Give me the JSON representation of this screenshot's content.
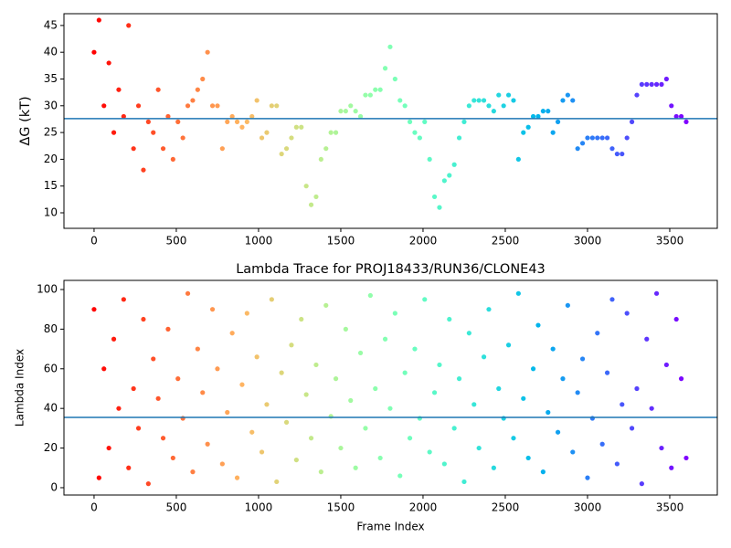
{
  "chart_data": [
    {
      "type": "scatter",
      "ylabel": "ΔG (kT)",
      "colormap": "rainbow_r",
      "x": [
        0,
        30,
        60,
        90,
        120,
        150,
        180,
        210,
        240,
        270,
        300,
        330,
        360,
        390,
        420,
        450,
        480,
        510,
        540,
        570,
        600,
        630,
        660,
        690,
        720,
        750,
        780,
        810,
        840,
        870,
        900,
        930,
        960,
        990,
        1020,
        1050,
        1080,
        1110,
        1140,
        1170,
        1200,
        1230,
        1260,
        1290,
        1320,
        1350,
        1380,
        1410,
        1440,
        1470,
        1500,
        1530,
        1560,
        1590,
        1620,
        1650,
        1680,
        1710,
        1740,
        1770,
        1800,
        1830,
        1860,
        1890,
        1920,
        1950,
        1980,
        2010,
        2040,
        2070,
        2100,
        2130,
        2160,
        2190,
        2220,
        2250,
        2280,
        2310,
        2340,
        2370,
        2400,
        2430,
        2460,
        2490,
        2520,
        2550,
        2580,
        2610,
        2640,
        2670,
        2700,
        2730,
        2760,
        2790,
        2820,
        2850,
        2880,
        2910,
        2940,
        2970,
        3000,
        3030,
        3060,
        3090,
        3120,
        3150,
        3180,
        3210,
        3240,
        3270,
        3300,
        3330,
        3360,
        3390,
        3420,
        3450,
        3480,
        3510,
        3540,
        3570,
        3600
      ],
      "values": [
        40,
        46,
        30,
        38,
        25,
        33,
        28,
        45,
        22,
        30,
        18,
        27,
        25,
        33,
        22,
        28,
        20,
        27,
        24,
        30,
        31,
        33,
        35,
        40,
        30,
        30,
        22,
        27,
        28,
        27,
        26,
        27,
        28,
        31,
        24,
        25,
        30,
        30,
        21,
        22,
        24,
        26,
        26,
        15,
        11.5,
        13,
        20,
        22,
        25,
        25,
        29,
        29,
        30,
        29,
        28,
        32,
        32,
        33,
        33,
        37,
        41,
        35,
        31,
        30,
        27,
        25,
        24,
        27,
        20,
        13,
        11,
        16,
        17,
        19,
        24,
        27,
        30,
        31,
        31,
        31,
        30,
        29,
        32,
        30,
        32,
        31,
        20,
        25,
        26,
        28,
        28,
        29,
        29,
        25,
        27,
        31,
        32,
        31,
        22,
        23,
        24,
        24,
        24,
        24,
        24,
        22,
        21,
        21,
        24,
        27,
        32,
        34,
        34,
        34,
        34,
        34,
        35,
        30,
        28,
        28,
        27
      ],
      "xlim": [
        -183,
        3789
      ],
      "ylim": [
        7.1,
        47.2
      ],
      "xticks": [
        0,
        500,
        1000,
        1500,
        2000,
        2500,
        3000,
        3500
      ],
      "yticks": [
        10,
        15,
        20,
        25,
        30,
        35,
        40,
        45
      ],
      "hline": 27.6,
      "hline_color": "#1f77b4"
    },
    {
      "type": "scatter",
      "title": "Lambda Trace for PROJ18433/RUN36/CLONE43",
      "xlabel": "Frame Index",
      "ylabel": "Lambda Index",
      "colormap": "rainbow_r",
      "x": [
        0,
        30,
        60,
        90,
        120,
        150,
        180,
        210,
        240,
        270,
        300,
        330,
        360,
        390,
        420,
        450,
        480,
        510,
        540,
        570,
        600,
        630,
        660,
        690,
        720,
        750,
        780,
        810,
        840,
        870,
        900,
        930,
        960,
        990,
        1020,
        1050,
        1080,
        1110,
        1140,
        1170,
        1200,
        1230,
        1260,
        1290,
        1320,
        1350,
        1380,
        1410,
        1440,
        1470,
        1500,
        1530,
        1560,
        1590,
        1620,
        1650,
        1680,
        1710,
        1740,
        1770,
        1800,
        1830,
        1860,
        1890,
        1920,
        1950,
        1980,
        2010,
        2040,
        2070,
        2100,
        2130,
        2160,
        2190,
        2220,
        2250,
        2280,
        2310,
        2340,
        2370,
        2400,
        2430,
        2460,
        2490,
        2520,
        2550,
        2580,
        2610,
        2640,
        2670,
        2700,
        2730,
        2760,
        2790,
        2820,
        2850,
        2880,
        2910,
        2940,
        2970,
        3000,
        3030,
        3060,
        3090,
        3120,
        3150,
        3180,
        3210,
        3240,
        3270,
        3300,
        3330,
        3360,
        3390,
        3420,
        3450,
        3480,
        3510,
        3540,
        3570,
        3600
      ],
      "values": [
        90,
        5,
        60,
        20,
        75,
        40,
        95,
        10,
        50,
        30,
        85,
        2,
        65,
        45,
        25,
        80,
        15,
        55,
        35,
        98,
        8,
        70,
        48,
        22,
        90,
        60,
        12,
        38,
        78,
        5,
        52,
        88,
        28,
        66,
        18,
        42,
        95,
        3,
        58,
        33,
        72,
        14,
        85,
        47,
        25,
        62,
        8,
        92,
        36,
        55,
        20,
        80,
        44,
        10,
        68,
        30,
        97,
        50,
        15,
        75,
        40,
        88,
        6,
        58,
        25,
        70,
        35,
        95,
        18,
        48,
        62,
        12,
        85,
        30,
        55,
        3,
        78,
        42,
        20,
        66,
        90,
        10,
        50,
        35,
        72,
        25,
        98,
        45,
        15,
        60,
        82,
        8,
        38,
        70,
        28,
        55,
        92,
        18,
        48,
        65,
        5,
        35,
        78,
        22,
        58,
        95,
        12,
        42,
        88,
        30,
        50,
        2,
        75,
        40,
        98,
        20,
        62,
        10,
        85,
        55,
        15
      ],
      "xlim": [
        -183,
        3789
      ],
      "ylim": [
        -3.7,
        104.6
      ],
      "xticks": [
        0,
        500,
        1000,
        1500,
        2000,
        2500,
        3000,
        3500
      ],
      "yticks": [
        0,
        20,
        40,
        60,
        80,
        100
      ],
      "hline": 35.5,
      "hline_color": "#1f77b4"
    }
  ]
}
